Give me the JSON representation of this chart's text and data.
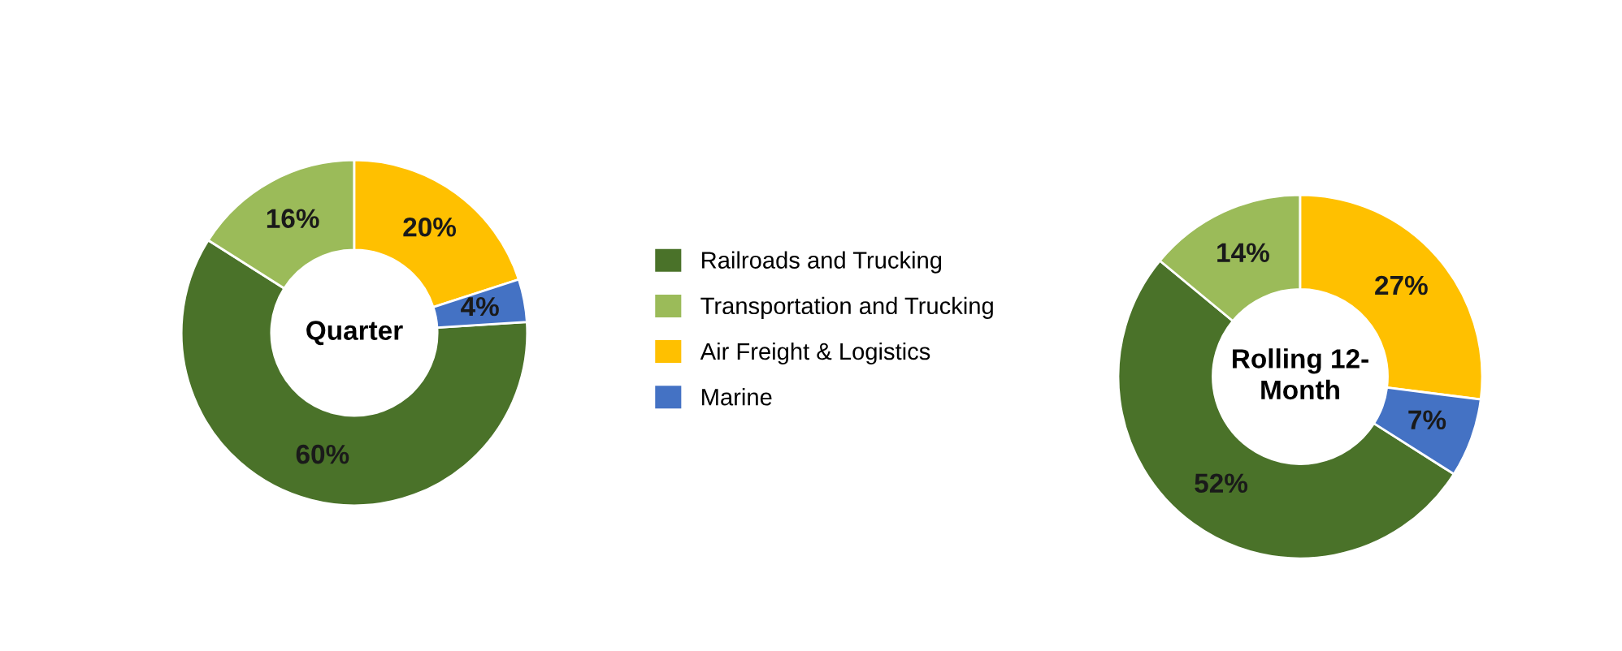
{
  "chart_data": [
    {
      "type": "donut",
      "title": "Quarter",
      "categories": [
        "Railroads and Trucking",
        "Transportation and Trucking",
        "Air Freight & Logistics",
        "Marine"
      ],
      "values": [
        60,
        16,
        20,
        4
      ],
      "value_labels": [
        "60%",
        "16%",
        "20%",
        "4%"
      ],
      "colors": [
        "#4a7229",
        "#9bbb59",
        "#ffc000",
        "#4472c4"
      ],
      "legend": "right"
    },
    {
      "type": "donut",
      "title": "Rolling 12-Month",
      "categories": [
        null,
        null,
        null,
        null
      ],
      "values": [
        52,
        14,
        27,
        7
      ],
      "value_labels": [
        "52%",
        "14%",
        "27%",
        "7%"
      ],
      "colors": [
        "#4a7229",
        "#9bbb59",
        "#ffc000",
        "#4472c4"
      ]
    }
  ]
}
